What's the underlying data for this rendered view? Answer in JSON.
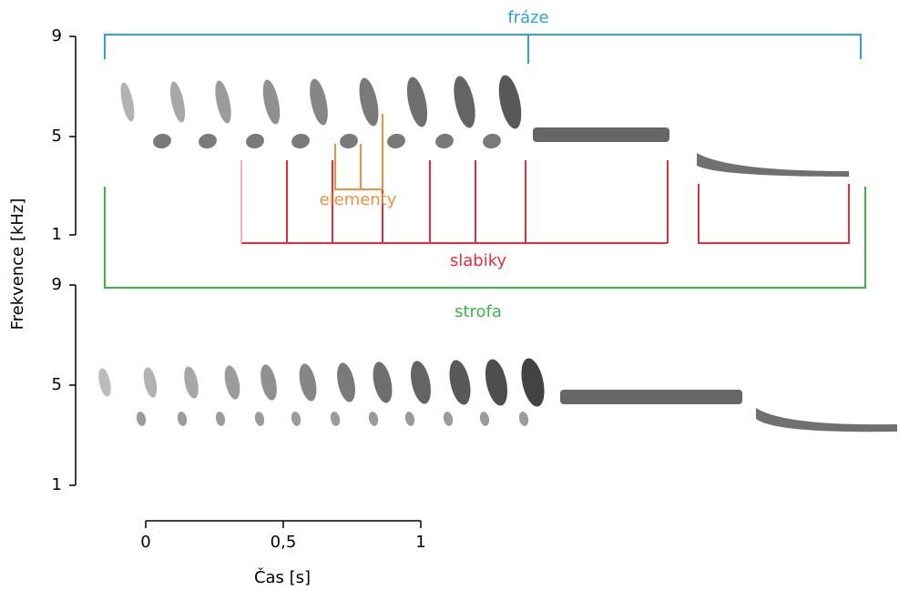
{
  "labels": {
    "phrase": "fráze",
    "elements": "elementy",
    "syllables": "slabiky",
    "strophe": "strofa"
  },
  "y_axis": {
    "title": "Frekvence [kHz]",
    "top_ticks": [
      "9",
      "5",
      "1"
    ],
    "bottom_ticks": [
      "9",
      "5",
      "1"
    ]
  },
  "x_axis": {
    "title": "Čas [s]",
    "ticks": [
      "0",
      "0,5",
      "1"
    ]
  }
}
